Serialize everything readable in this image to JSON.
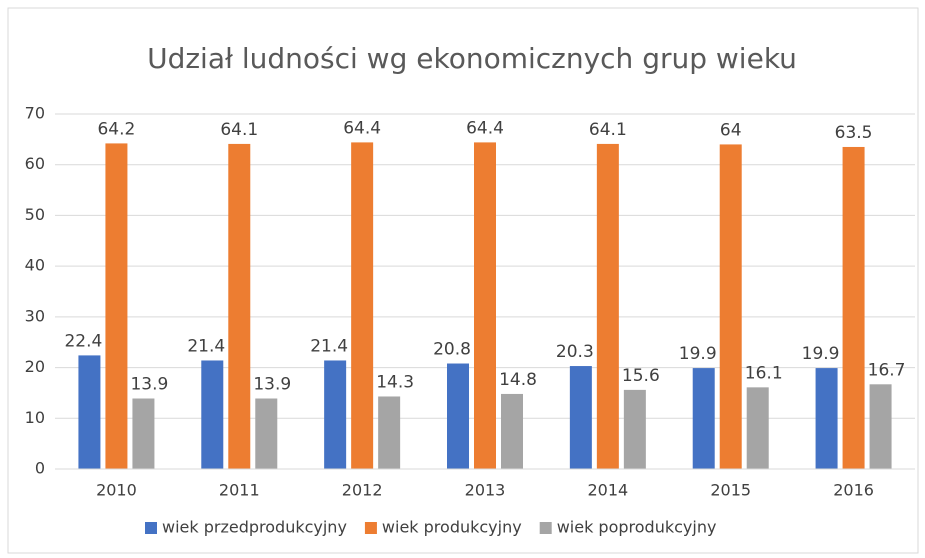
{
  "chart_data": {
    "type": "bar",
    "title": "Udział ludności wg ekonomicznych grup wieku",
    "categories": [
      "2010",
      "2011",
      "2012",
      "2013",
      "2014",
      "2015",
      "2016"
    ],
    "series": [
      {
        "name": "wiek przedprodukcyjny",
        "color": "#4472c4",
        "values": [
          22.4,
          21.4,
          21.4,
          20.8,
          20.3,
          19.9,
          19.9
        ]
      },
      {
        "name": "wiek produkcyjny",
        "color": "#ed7d31",
        "values": [
          64.2,
          64.1,
          64.4,
          64.4,
          64.1,
          64,
          63.5
        ]
      },
      {
        "name": "wiek poprodukcyjny",
        "color": "#a5a5a5",
        "values": [
          13.9,
          13.9,
          14.3,
          14.8,
          15.6,
          16.1,
          16.7
        ]
      }
    ],
    "ylim": [
      0,
      70
    ],
    "yticks": [
      0,
      10,
      20,
      30,
      40,
      50,
      60,
      70
    ],
    "grid": true,
    "legend": "bottom"
  }
}
